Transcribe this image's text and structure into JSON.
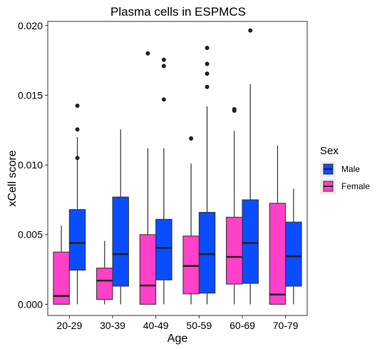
{
  "chart_data": {
    "type": "box",
    "title": "Plasma cells in ESPMCS",
    "xlabel": "Age",
    "ylabel": "xCell score",
    "categories": [
      "20-29",
      "30-39",
      "40-49",
      "50-59",
      "60-69",
      "70-79"
    ],
    "ylim": [
      -0.0008,
      0.0203
    ],
    "yticks": [
      0.0,
      0.005,
      0.01,
      0.015,
      0.02
    ],
    "ytick_labels": [
      "0.000",
      "0.005",
      "0.010",
      "0.015",
      "0.020"
    ],
    "grid": false,
    "legend": {
      "title": "Sex",
      "position": "right"
    },
    "series": [
      {
        "name": "Female",
        "color": "#ff40c8",
        "boxes": [
          {
            "min": 0.0,
            "q1": 0.0,
            "median": 0.0006,
            "q3": 0.00375,
            "max": 0.00565,
            "outliers": []
          },
          {
            "min": 0.0,
            "q1": 0.00035,
            "median": 0.0017,
            "q3": 0.0026,
            "max": 0.00455,
            "outliers": []
          },
          {
            "min": 0.0,
            "q1": 0.0,
            "median": 0.00135,
            "q3": 0.005,
            "max": 0.0112,
            "outliers": [
              0.018
            ]
          },
          {
            "min": 0.0,
            "q1": 0.00075,
            "median": 0.00275,
            "q3": 0.0049,
            "max": 0.0101,
            "outliers": [
              0.0119
            ]
          },
          {
            "min": 0.0,
            "q1": 0.00145,
            "median": 0.0034,
            "q3": 0.00625,
            "max": 0.01245,
            "outliers": [
              0.0139,
              0.014
            ]
          },
          {
            "min": 0.0,
            "q1": 0.0,
            "median": 0.0007,
            "q3": 0.00725,
            "max": 0.0114,
            "outliers": []
          }
        ]
      },
      {
        "name": "Male",
        "color": "#0a4dff",
        "boxes": [
          {
            "min": 0.0,
            "q1": 0.00245,
            "median": 0.0044,
            "q3": 0.0068,
            "max": 0.012,
            "outliers": [
              0.0105,
              0.01255,
              0.01425
            ]
          },
          {
            "min": 0.0,
            "q1": 0.0013,
            "median": 0.0036,
            "q3": 0.0077,
            "max": 0.01255,
            "outliers": []
          },
          {
            "min": 0.0,
            "q1": 0.00175,
            "median": 0.00405,
            "q3": 0.0061,
            "max": 0.0112,
            "outliers": [
              0.0147,
              0.0171,
              0.01755
            ]
          },
          {
            "min": 0.0,
            "q1": 0.0008,
            "median": 0.0036,
            "q3": 0.0066,
            "max": 0.0142,
            "outliers": [
              0.0156,
              0.01655,
              0.01725,
              0.0184
            ]
          },
          {
            "min": 0.0,
            "q1": 0.0015,
            "median": 0.0044,
            "q3": 0.0075,
            "max": 0.0158,
            "outliers": [
              0.01965
            ]
          },
          {
            "min": 0.0,
            "q1": 0.0013,
            "median": 0.00345,
            "q3": 0.0059,
            "max": 0.0083,
            "outliers": []
          }
        ]
      }
    ]
  },
  "legend_items": [
    {
      "label": "Male",
      "color": "#0a4dff"
    },
    {
      "label": "Female",
      "color": "#ff40c8"
    }
  ]
}
